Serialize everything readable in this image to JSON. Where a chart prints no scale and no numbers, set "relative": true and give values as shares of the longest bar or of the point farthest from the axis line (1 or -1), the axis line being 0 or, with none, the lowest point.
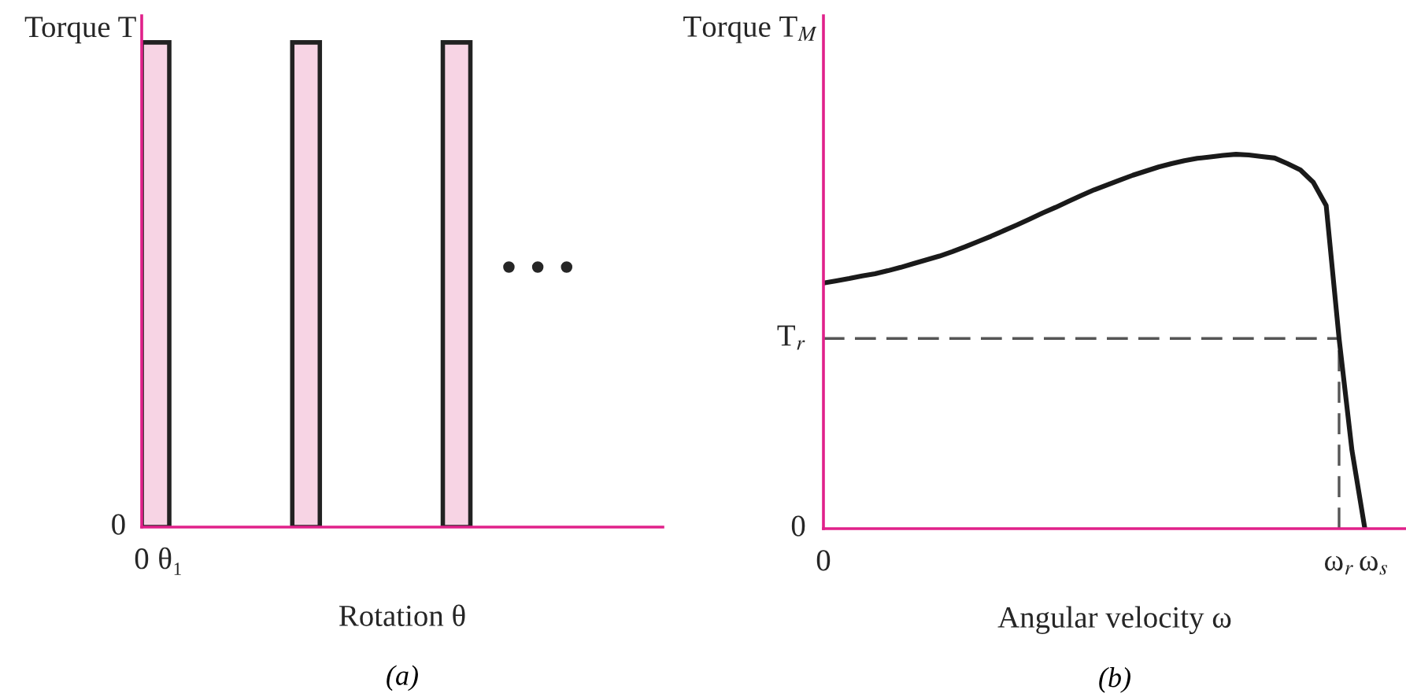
{
  "chart_data": [
    {
      "type": "bar",
      "relative": true,
      "title": "(a)",
      "xlabel": "Rotation θ",
      "ylabel": "Torque T",
      "categories": [
        null,
        null,
        null
      ],
      "values": [
        1,
        1,
        1
      ],
      "color": "#f7d4e4",
      "annotations": [
        "0",
        "0",
        "θ₁",
        "• • •"
      ],
      "grid": false,
      "legend": false
    },
    {
      "type": "line",
      "relative": true,
      "title": "(b)",
      "xlabel": "Angular velocity ω",
      "ylabel": "Torque T$_{M}$",
      "categories": [
        null,
        null,
        null,
        null,
        null,
        null,
        null,
        null,
        null,
        null,
        null,
        null,
        null,
        null,
        null,
        null,
        null,
        null,
        null,
        null,
        null,
        null,
        null,
        null,
        null,
        null,
        null,
        null,
        null,
        null,
        null,
        null,
        null,
        null,
        null,
        null,
        null,
        null,
        null,
        null,
        null,
        null,
        null
      ],
      "series": [
        {
          "color": "#1a1a1a",
          "values": [
            0.656,
            0.662,
            0.668,
            0.675,
            0.681,
            0.689,
            0.698,
            0.708,
            0.718,
            0.728,
            0.74,
            0.753,
            0.767,
            0.781,
            0.796,
            0.811,
            0.827,
            0.843,
            0.858,
            0.874,
            0.89,
            0.905,
            0.918,
            0.931,
            0.944,
            0.955,
            0.966,
            0.975,
            0.983,
            0.989,
            0.993,
            0.997,
            1.0,
            0.998,
            0.994,
            0.99,
            0.975,
            0.958,
            0.925,
            0.863,
            0.508,
            0.209,
            0
          ]
        }
      ],
      "annotations": [
        "0",
        "0",
        "T$_{r}$",
        "ω$_{r}$",
        "ω$_{s}$"
      ],
      "ref_lines": [
        {
          "axis": "y",
          "value": 0.508,
          "color": "#555555",
          "line_style": "dashed"
        }
      ],
      "marker": "none",
      "line_style": "solid",
      "grid": false,
      "legend": false
    }
  ]
}
